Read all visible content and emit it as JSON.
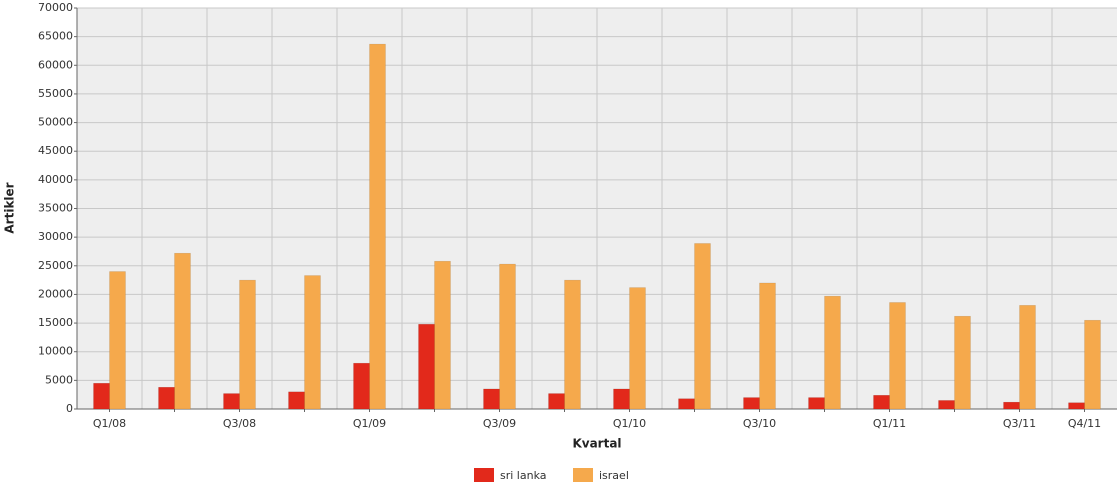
{
  "chart_data": {
    "type": "bar",
    "x_label": "Kvartal",
    "y_label": "Artikler",
    "categories": [
      "Q1/08",
      null,
      "Q3/08",
      null,
      "Q1/09",
      null,
      "Q3/09",
      null,
      "Q1/10",
      null,
      "Q3/10",
      null,
      "Q1/11",
      null,
      "Q3/11",
      "Q4/11"
    ],
    "series": [
      {
        "name": "sri lanka",
        "color": "#e2291b",
        "values": [
          4500,
          3800,
          2700,
          3000,
          8000,
          14800,
          3500,
          2700,
          3500,
          1800,
          2000,
          2000,
          2400,
          1500,
          1200,
          1100
        ]
      },
      {
        "name": "israel",
        "color": "#f5a94c",
        "values": [
          24000,
          27200,
          22500,
          23300,
          63700,
          25800,
          25300,
          22500,
          21200,
          28900,
          22000,
          19700,
          18600,
          16200,
          18100,
          15500
        ]
      }
    ],
    "ylim": [
      0,
      70000
    ],
    "yticks": [
      0,
      5000,
      10000,
      15000,
      20000,
      25000,
      30000,
      35000,
      40000,
      45000,
      50000,
      55000,
      60000,
      65000,
      70000
    ],
    "grid": true,
    "legend": "bottom"
  }
}
